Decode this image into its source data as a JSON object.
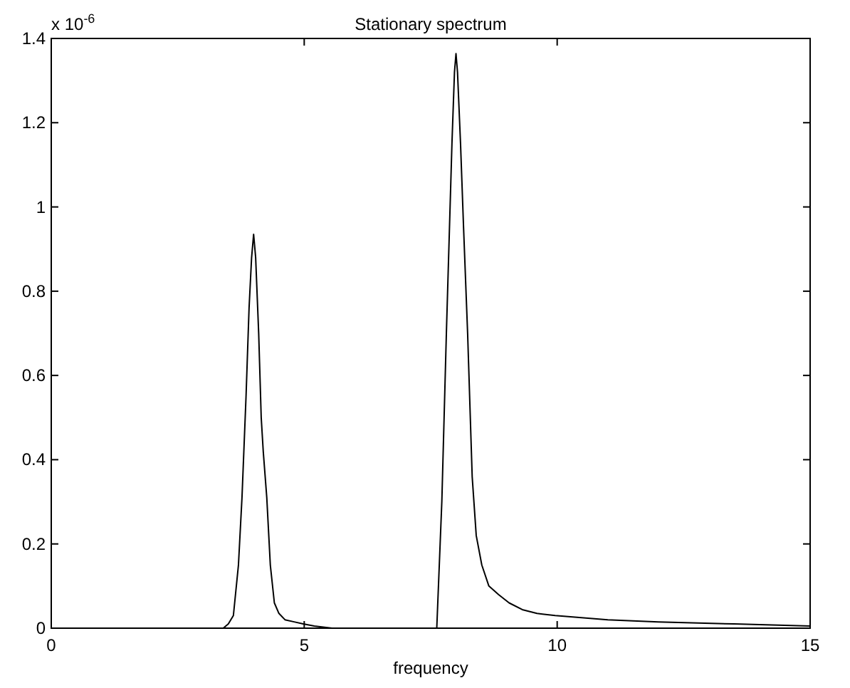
{
  "chart_data": {
    "type": "line",
    "title": "Stationary spectrum",
    "xlabel": "frequency",
    "annotations": [
      "x 10$^{-6}$"
    ],
    "xlim": [
      0,
      15
    ],
    "xticks": [
      0,
      5,
      10,
      15
    ],
    "ylim": [
      0,
      1.4
    ],
    "yticks": [
      0,
      0.2,
      0.4,
      0.6,
      0.8,
      1,
      1.2,
      1.4
    ],
    "grid": false,
    "series": [
      {
        "color": "#000000",
        "x": [
          0,
          3.4,
          3.5,
          3.6,
          3.7,
          3.77,
          3.85,
          3.91,
          3.96,
          4.0,
          4.04,
          4.1,
          4.15,
          4.19,
          4.26,
          4.33,
          4.41,
          4.5,
          4.62,
          4.8,
          4.98,
          5.2,
          5.55,
          7.0,
          7.62,
          7.72,
          7.81,
          7.92,
          7.97,
          8.0,
          8.03,
          8.09,
          8.15,
          8.23,
          8.32,
          8.4,
          8.51,
          8.65,
          8.84,
          9.05,
          9.31,
          9.6,
          9.96,
          11,
          12,
          13.5,
          15
        ],
        "values": [
          0,
          0,
          0.01,
          0.03,
          0.15,
          0.31,
          0.55,
          0.76,
          0.88,
          0.935,
          0.88,
          0.7,
          0.5,
          0.42,
          0.31,
          0.15,
          0.06,
          0.035,
          0.02,
          0.015,
          0.01,
          0.005,
          0,
          0,
          0,
          0.3,
          0.7,
          1.15,
          1.32,
          1.364,
          1.32,
          1.15,
          0.95,
          0.7,
          0.36,
          0.22,
          0.15,
          0.1,
          0.08,
          0.06,
          0.044,
          0.035,
          0.03,
          0.02,
          0.015,
          0.01,
          0.005
        ]
      }
    ]
  }
}
